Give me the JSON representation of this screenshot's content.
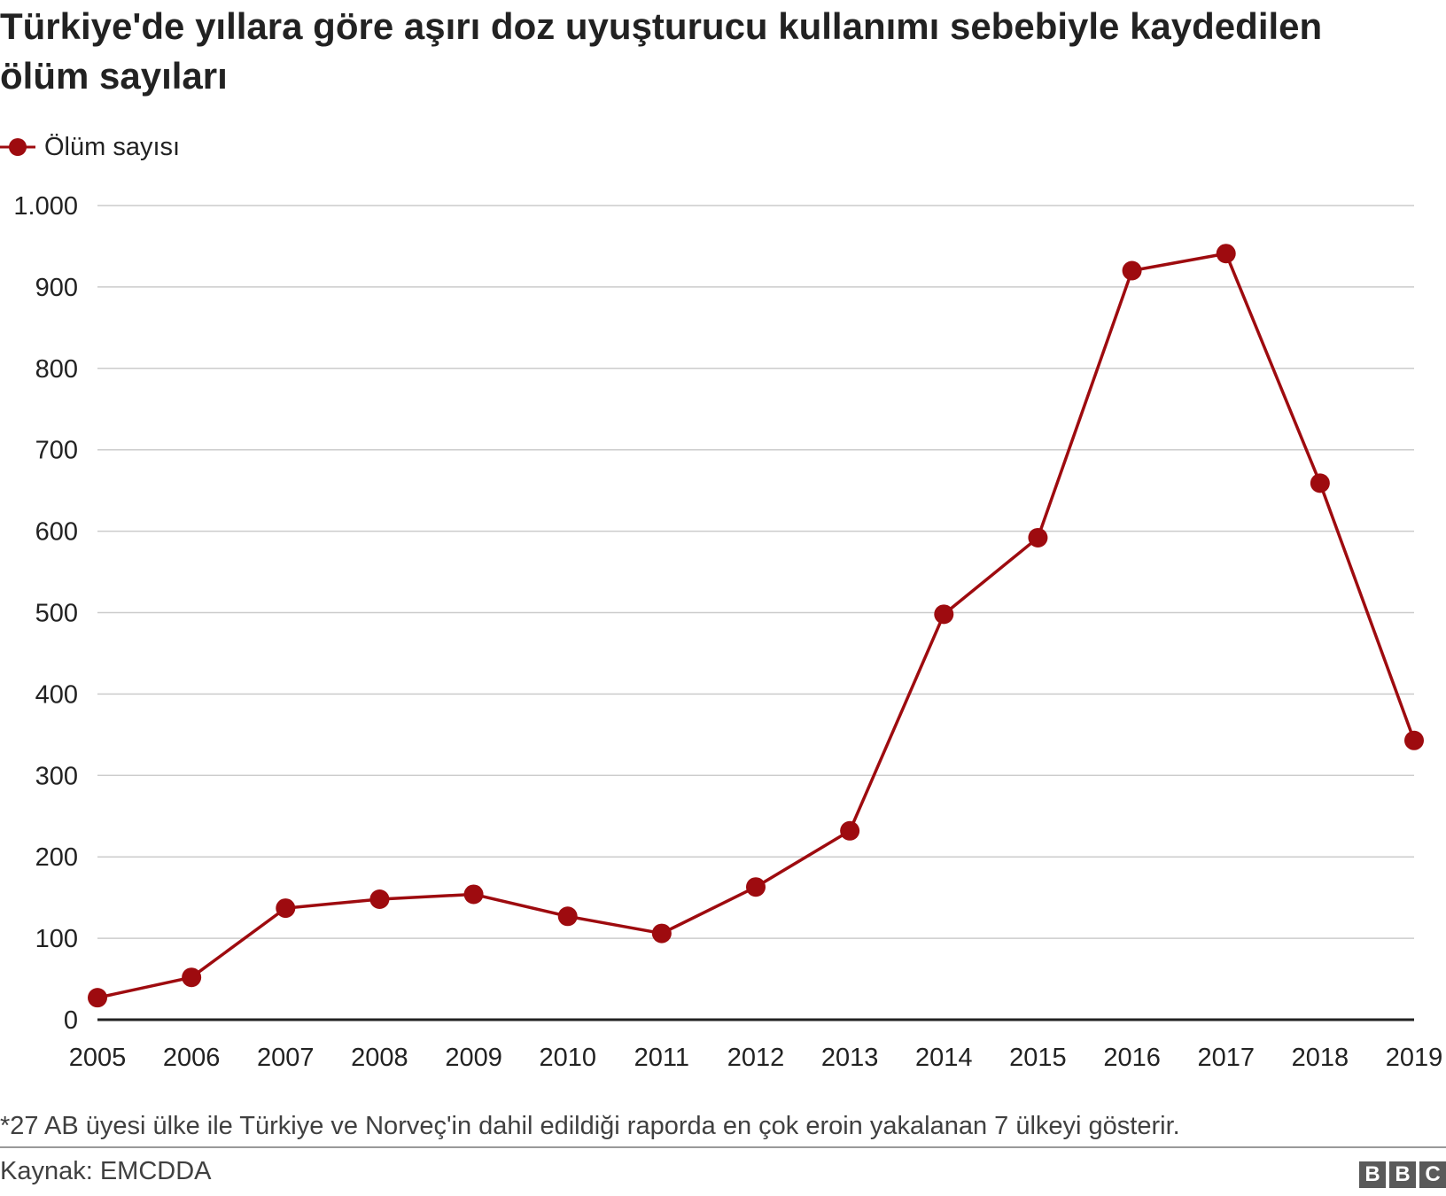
{
  "title": "Türkiye'de yıllara göre aşırı doz uyuşturucu kullanımı sebebiyle kaydedilen ölüm sayıları",
  "legend": {
    "label": "Ölüm sayısı"
  },
  "footnote": "*27 AB üyesi ülke ile Türkiye ve Norveç'in dahil edildiği raporda en çok eroin yakalanan 7 ülkeyi gösterir.",
  "source": "Kaynak: EMCDDA",
  "logo": [
    "B",
    "B",
    "C"
  ],
  "colors": {
    "series": "#9e0b0f",
    "grid": "#cccccc",
    "axis": "#222222"
  },
  "chart_data": {
    "type": "line",
    "x": [
      "2005",
      "2006",
      "2007",
      "2008",
      "2009",
      "2010",
      "2011",
      "2012",
      "2013",
      "2014",
      "2015",
      "2016",
      "2017",
      "2018",
      "2019"
    ],
    "series": [
      {
        "name": "Ölüm sayısı",
        "values": [
          27,
          52,
          137,
          148,
          154,
          127,
          106,
          163,
          232,
          498,
          592,
          920,
          941,
          659,
          343
        ]
      }
    ],
    "ylim": [
      0,
      1000
    ],
    "yticks": [
      0,
      100,
      200,
      300,
      400,
      500,
      600,
      700,
      800,
      900,
      1000
    ],
    "ytick_labels": [
      "0",
      "100",
      "200",
      "300",
      "400",
      "500",
      "600",
      "700",
      "800",
      "900",
      "1.000"
    ],
    "grid": true,
    "legend_position": "top-left"
  }
}
